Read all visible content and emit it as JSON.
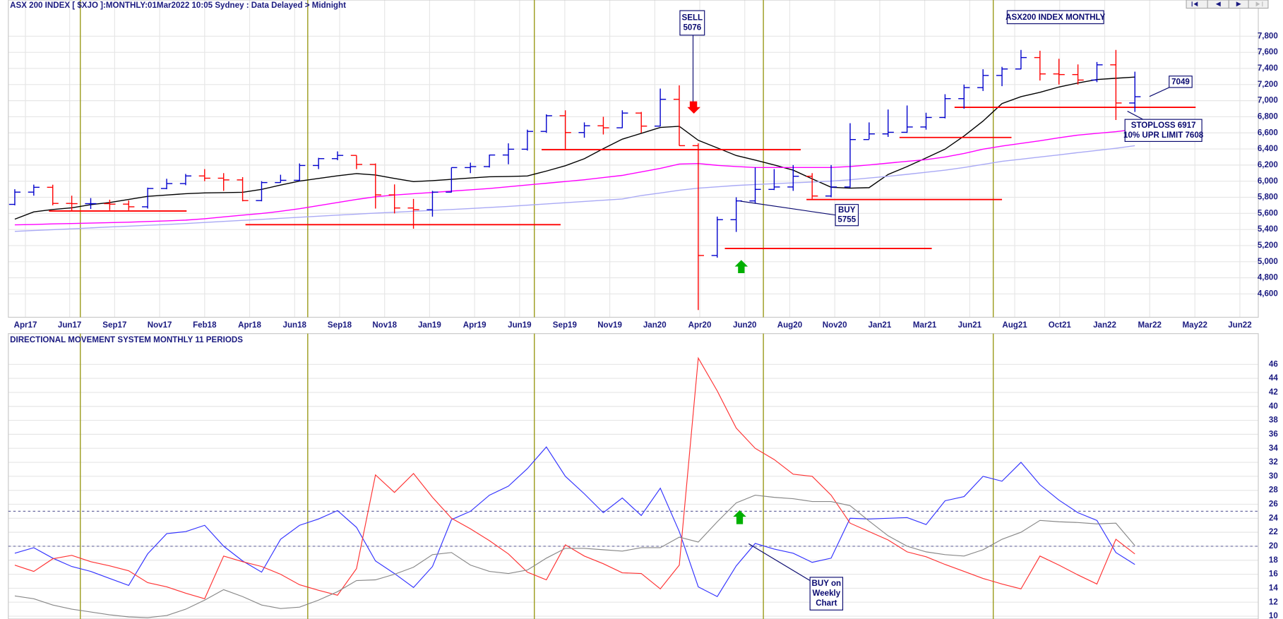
{
  "header": {
    "title": "ASX 200 INDEX [ $XJO ]:MONTHLY:01Mar2022 10:05 Sydney : Data Delayed > Midnight"
  },
  "chart_data": [
    {
      "type": "ohlc",
      "box_label": "ASX200 INDEX MONTHLY",
      "up_color": "#0000cc",
      "down_color": "#ff0000",
      "open": [
        5712,
        5864,
        5924,
        5724,
        5721,
        5721,
        5715,
        5682,
        5909,
        5970,
        6065,
        6037,
        6016,
        5759,
        5983,
        6011,
        6195,
        6280,
        6320,
        6208,
        5830,
        5667,
        5646,
        5864,
        6169,
        6181,
        6325,
        6397,
        6618,
        6813,
        6604,
        6688,
        6663,
        6846,
        6684,
        7017,
        6441,
        5077,
        5522,
        5755,
        5898,
        5928,
        6061,
        5816,
        5928,
        6517,
        6587,
        6607,
        6673,
        6791,
        7025,
        7162,
        7313,
        7393,
        7535,
        7332,
        7324,
        7256,
        7445,
        6971
      ],
      "high": [
        5900,
        5957,
        5956,
        5820,
        5790,
        5770,
        5760,
        5920,
        6030,
        6090,
        6150,
        6100,
        6050,
        6000,
        6080,
        6220,
        6290,
        6370,
        6320,
        6220,
        5960,
        5780,
        5880,
        6170,
        6230,
        6330,
        6470,
        6640,
        6830,
        6880,
        6730,
        6800,
        6880,
        6860,
        7150,
        7190,
        6470,
        5560,
        5800,
        6170,
        6150,
        6200,
        6100,
        6200,
        6720,
        6730,
        6890,
        6940,
        6850,
        7080,
        7200,
        7390,
        7420,
        7630,
        7620,
        7520,
        7450,
        7480,
        7630,
        7360
      ],
      "low": [
        5700,
        5820,
        5700,
        5625,
        5655,
        5640,
        5640,
        5660,
        5900,
        5950,
        6000,
        5880,
        5750,
        5750,
        5980,
        6000,
        6150,
        6260,
        6150,
        5660,
        5600,
        5410,
        5560,
        5860,
        6100,
        6170,
        6210,
        6380,
        6600,
        6400,
        6540,
        6580,
        6660,
        6600,
        6680,
        6440,
        4400,
        5050,
        5370,
        5720,
        5890,
        5880,
        5780,
        5800,
        5920,
        6520,
        6550,
        6600,
        6640,
        6780,
        6900,
        7120,
        7180,
        7390,
        7250,
        7200,
        7200,
        7230,
        6760,
        6860
      ],
      "close": [
        5864,
        5924,
        5724,
        5721,
        5721,
        5715,
        5682,
        5909,
        5970,
        6065,
        6037,
        6016,
        5759,
        5983,
        6011,
        6195,
        6280,
        6320,
        6208,
        5830,
        5667,
        5646,
        5864,
        6169,
        6181,
        6325,
        6397,
        6618,
        6813,
        6604,
        6688,
        6663,
        6846,
        6684,
        7017,
        6441,
        5077,
        5522,
        5755,
        5898,
        5928,
        6061,
        5816,
        5928,
        6517,
        6587,
        6607,
        6673,
        6791,
        7025,
        7162,
        7313,
        7393,
        7535,
        7332,
        7324,
        7256,
        7445,
        6971,
        7049
      ],
      "overlays": [
        {
          "color": "#000000",
          "values": [
            5529,
            5619,
            5648,
            5670,
            5708,
            5735,
            5773,
            5812,
            5828,
            5844,
            5855,
            5858,
            5862,
            5898,
            5952,
            6001,
            6034,
            6067,
            6094,
            6077,
            6034,
            5995,
            6007,
            6023,
            6039,
            6055,
            6059,
            6065,
            6126,
            6192,
            6279,
            6404,
            6522,
            6594,
            6667,
            6681,
            6507,
            6414,
            6319,
            6262,
            6202,
            6137,
            6029,
            5925,
            5913,
            5920,
            6083,
            6181,
            6289,
            6398,
            6561,
            6746,
            6963,
            7050,
            7104,
            7170,
            7219,
            7262,
            7278,
            7293
          ]
        },
        {
          "color": "#ff00ff",
          "values": [
            5457,
            5463,
            5470,
            5474,
            5480,
            5485,
            5491,
            5499,
            5507,
            5516,
            5534,
            5556,
            5578,
            5599,
            5626,
            5659,
            5697,
            5735,
            5773,
            5806,
            5828,
            5844,
            5860,
            5877,
            5893,
            5909,
            5931,
            5953,
            5974,
            5996,
            6018,
            6045,
            6072,
            6116,
            6159,
            6213,
            6219,
            6197,
            6181,
            6170,
            6170,
            6170,
            6170,
            6170,
            6181,
            6202,
            6224,
            6246,
            6268,
            6300,
            6344,
            6398,
            6436,
            6469,
            6501,
            6539,
            6572,
            6594,
            6615,
            6644
          ]
        },
        {
          "color": "#a9a9f5",
          "values": [
            5376,
            5387,
            5398,
            5409,
            5420,
            5431,
            5441,
            5452,
            5463,
            5474,
            5487,
            5500,
            5513,
            5526,
            5539,
            5552,
            5565,
            5578,
            5591,
            5604,
            5615,
            5626,
            5637,
            5648,
            5661,
            5674,
            5687,
            5702,
            5717,
            5733,
            5748,
            5763,
            5778,
            5822,
            5854,
            5887,
            5913,
            5930,
            5947,
            5958,
            5969,
            5979,
            5990,
            6001,
            6018,
            6039,
            6061,
            6085,
            6110,
            6137,
            6170,
            6208,
            6246,
            6273,
            6300,
            6327,
            6355,
            6382,
            6409,
            6440
          ]
        }
      ],
      "level_color": "#ff0000",
      "levels": [
        {
          "value": 5630,
          "start": 1.8,
          "end": 9.05
        },
        {
          "value": 5460,
          "start": 12.15,
          "end": 28.75
        },
        {
          "value": 6391,
          "start": 27.75,
          "end": 41.4
        },
        {
          "value": 5772,
          "start": 41.7,
          "end": 52.0
        },
        {
          "value": 5164,
          "start": 37.4,
          "end": 48.3
        },
        {
          "value": 6543,
          "start": 46.6,
          "end": 52.5
        },
        {
          "value": 6917,
          "start": 49.5,
          "end": 62.2
        }
      ],
      "annotations": {
        "sell": [
          "SELL",
          "5076"
        ],
        "buy": [
          "BUY",
          "5755"
        ],
        "last": "7049",
        "stop": [
          "STOPLOSS 6917",
          "10% UPR LIMIT 7608"
        ]
      },
      "xlim": [
        -0.34,
        65.5
      ],
      "xticks": [
        {
          "value": 0.56,
          "label": "Apr17"
        },
        {
          "value": 2.89,
          "label": "Jun17"
        },
        {
          "value": 5.26,
          "label": "Sep17"
        },
        {
          "value": 7.63,
          "label": "Nov17"
        },
        {
          "value": 10.0,
          "label": "Feb18"
        },
        {
          "value": 12.37,
          "label": "Apr18"
        },
        {
          "value": 14.74,
          "label": "Jun18"
        },
        {
          "value": 17.11,
          "label": "Sep18"
        },
        {
          "value": 19.48,
          "label": "Nov18"
        },
        {
          "value": 21.85,
          "label": "Jan19"
        },
        {
          "value": 24.22,
          "label": "Apr19"
        },
        {
          "value": 26.59,
          "label": "Jun19"
        },
        {
          "value": 28.97,
          "label": "Sep19"
        },
        {
          "value": 31.34,
          "label": "Nov19"
        },
        {
          "value": 33.71,
          "label": "Jan20"
        },
        {
          "value": 36.08,
          "label": "Apr20"
        },
        {
          "value": 38.45,
          "label": "Jun20"
        },
        {
          "value": 40.82,
          "label": "Aug20"
        },
        {
          "value": 43.19,
          "label": "Nov20"
        },
        {
          "value": 45.56,
          "label": "Jan21"
        },
        {
          "value": 47.93,
          "label": "Mar21"
        },
        {
          "value": 50.3,
          "label": "Jun21"
        },
        {
          "value": 52.67,
          "label": "Aug21"
        },
        {
          "value": 55.04,
          "label": "Oct21"
        },
        {
          "value": 57.41,
          "label": "Jan22"
        },
        {
          "value": 59.78,
          "label": "Mar22"
        },
        {
          "value": 62.16,
          "label": "May22"
        },
        {
          "value": 64.53,
          "label": "Jun22"
        }
      ],
      "ylim": [
        4310,
        8250
      ],
      "yticks": [
        {
          "value": 4600,
          "label": "4,600"
        },
        {
          "value": 4800,
          "label": "4,800"
        },
        {
          "value": 5000,
          "label": "5,000"
        },
        {
          "value": 5200,
          "label": "5,200"
        },
        {
          "value": 5400,
          "label": "5,400"
        },
        {
          "value": 5600,
          "label": "5,600"
        },
        {
          "value": 5800,
          "label": "5,800"
        },
        {
          "value": 6000,
          "label": "6,000"
        },
        {
          "value": 6200,
          "label": "6,200"
        },
        {
          "value": 6400,
          "label": "6,400"
        },
        {
          "value": 6600,
          "label": "6,600"
        },
        {
          "value": 6800,
          "label": "6,800"
        },
        {
          "value": 7000,
          "label": "7,000"
        },
        {
          "value": 7200,
          "label": "7,200"
        },
        {
          "value": 7400,
          "label": "7,400"
        },
        {
          "value": 7600,
          "label": "7,600"
        },
        {
          "value": 7800,
          "label": "7,800"
        }
      ],
      "grid": true
    },
    {
      "type": "line",
      "title": "DIRECTIONAL MOVEMENT SYSTEM MONTHLY 11 PERIODS",
      "series": [
        {
          "color": "#3333ff",
          "values": [
            19.0,
            19.8,
            18.3,
            17.1,
            16.4,
            15.4,
            14.4,
            18.9,
            21.8,
            22.1,
            23.0,
            20.0,
            17.9,
            16.3,
            21.0,
            23.0,
            23.9,
            25.1,
            22.7,
            17.9,
            16.1,
            14.1,
            17.1,
            23.8,
            25.0,
            27.3,
            28.6,
            31.1,
            34.2,
            30.0,
            27.5,
            24.8,
            26.9,
            24.4,
            28.3,
            22.1,
            14.2,
            12.8,
            17.2,
            20.4,
            19.6,
            19.0,
            17.7,
            18.3,
            24.0,
            23.9,
            24.0,
            24.1,
            23.1,
            26.5,
            27.1,
            30.0,
            29.3,
            32.0,
            28.8,
            26.6,
            24.8,
            23.7,
            19.1,
            17.4
          ]
        },
        {
          "color": "#ff3333",
          "values": [
            17.3,
            16.4,
            18.2,
            18.7,
            17.8,
            17.2,
            16.5,
            14.8,
            14.2,
            13.3,
            12.5,
            18.6,
            17.8,
            17.1,
            16.0,
            14.5,
            13.7,
            13.0,
            16.8,
            30.2,
            27.7,
            30.4,
            27.0,
            24.0,
            22.5,
            20.8,
            18.9,
            16.3,
            15.2,
            20.2,
            18.6,
            17.5,
            16.2,
            16.1,
            13.9,
            17.3,
            46.9,
            42.2,
            36.9,
            34.0,
            32.4,
            30.3,
            30.0,
            27.3,
            23.3,
            22.1,
            20.9,
            19.2,
            18.5,
            17.4,
            16.4,
            15.4,
            14.6,
            13.9,
            18.6,
            17.3,
            15.9,
            14.6,
            21.0,
            18.9
          ]
        },
        {
          "color": "#888888",
          "values": [
            12.9,
            12.5,
            11.6,
            11.0,
            10.6,
            10.2,
            9.9,
            9.8,
            10.1,
            11.0,
            12.3,
            13.8,
            12.8,
            11.6,
            11.1,
            11.3,
            12.3,
            13.5,
            15.1,
            15.2,
            16.0,
            17.0,
            18.8,
            19.1,
            17.3,
            16.4,
            16.1,
            16.6,
            18.3,
            19.7,
            19.7,
            19.5,
            19.3,
            19.8,
            19.8,
            21.3,
            20.6,
            23.5,
            26.2,
            27.3,
            27.0,
            26.8,
            26.4,
            26.4,
            25.8,
            23.6,
            21.5,
            20.0,
            19.2,
            18.8,
            18.6,
            19.5,
            21.0,
            22.0,
            23.7,
            23.5,
            23.4,
            23.2,
            23.3,
            20.1
          ]
        }
      ],
      "reference_lines": [
        25,
        20
      ],
      "annotation": [
        "BUY on",
        "Weekly",
        "Chart"
      ],
      "xlim": [
        -0.34,
        65.5
      ],
      "ylim": [
        9.6,
        50.4
      ],
      "yticks": [
        10,
        12,
        14,
        16,
        18,
        20,
        22,
        24,
        26,
        28,
        30,
        32,
        34,
        36,
        38,
        40,
        42,
        44,
        46
      ],
      "grid": true
    }
  ]
}
